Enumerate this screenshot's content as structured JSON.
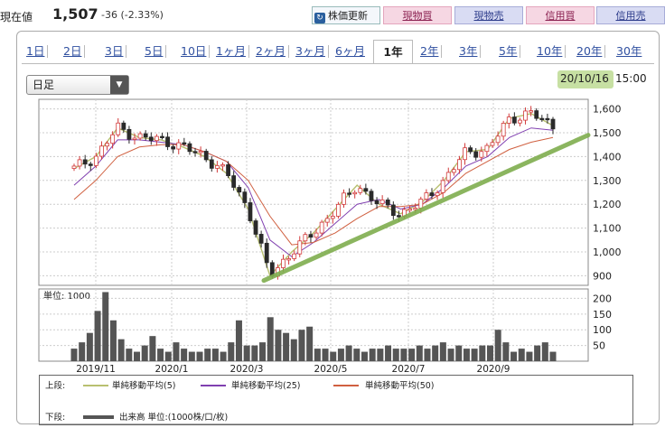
{
  "header": {
    "price_label": "現在値",
    "price_value": "1,507",
    "price_change": "-36 (-2.33%)",
    "refresh_label": "株価更新",
    "trade_buttons": [
      "現物買",
      "現物売",
      "信用買",
      "信用売"
    ]
  },
  "tabs": [
    "1日",
    "2日",
    "3日",
    "5日",
    "10日",
    "1ヶ月",
    "2ヶ月",
    "3ヶ月",
    "6ヶ月",
    "1年",
    "2年",
    "3年",
    "5年",
    "10年",
    "20年",
    "30年"
  ],
  "active_tab": "1年",
  "interval_select": {
    "value": "日足"
  },
  "as_of": {
    "date": "20/10/16",
    "time": "15:00"
  },
  "colors": {
    "up": "#d23a3a",
    "down": "#2a2a2a",
    "ma5": "#b8c070",
    "ma25": "#8040b0",
    "ma50": "#d06040",
    "trend": "#7fae4e",
    "volume": "#555555"
  },
  "chart_data": [
    {
      "type": "line",
      "title": "",
      "x_ticks": [
        "2019/11",
        "2020/1",
        "2020/3",
        "2020/5",
        "2020/7",
        "2020/9"
      ],
      "y_ticks": [
        "1,600",
        "1,500",
        "1,400",
        "1,300",
        "1,200",
        "1,100",
        "1,000",
        "900"
      ],
      "ylim": [
        860,
        1640
      ],
      "series": [
        {
          "name": "単純移動平均(5)",
          "values": [
            1350,
            1400,
            1520,
            1480,
            1470,
            1440,
            1400,
            1330,
            1180,
            900,
            1000,
            1080,
            1180,
            1280,
            1200,
            1160,
            1210,
            1300,
            1420,
            1430,
            1560,
            1580,
            1530
          ]
        },
        {
          "name": "単純移動平均(25)",
          "values": [
            1280,
            1360,
            1470,
            1470,
            1460,
            1450,
            1420,
            1380,
            1270,
            1050,
            980,
            1040,
            1120,
            1200,
            1220,
            1180,
            1200,
            1270,
            1360,
            1400,
            1480,
            1520,
            1510
          ]
        },
        {
          "name": "単純移動平均(50)",
          "values": [
            1220,
            1300,
            1400,
            1440,
            1450,
            1450,
            1420,
            1380,
            1300,
            1150,
            1030,
            1040,
            1080,
            1140,
            1190,
            1190,
            1200,
            1250,
            1330,
            1380,
            1430,
            1460,
            1480
          ]
        }
      ],
      "trendline": {
        "from": [
          "2020/3",
          880
        ],
        "to": [
          "2020/10",
          1490
        ]
      }
    },
    {
      "type": "bar",
      "title": "単位: 1000",
      "y_ticks": [
        "200",
        "150",
        "100",
        "50"
      ],
      "ylim": [
        0,
        230
      ],
      "values": [
        40,
        60,
        90,
        160,
        220,
        130,
        70,
        40,
        30,
        50,
        80,
        40,
        30,
        60,
        40,
        30,
        30,
        40,
        40,
        30,
        60,
        130,
        50,
        50,
        60,
        140,
        100,
        90,
        70,
        100,
        110,
        40,
        40,
        30,
        40,
        50,
        40,
        30,
        40,
        40,
        50,
        40,
        40,
        40,
        50,
        40,
        50,
        60,
        40,
        50,
        40,
        40,
        50,
        50,
        100,
        60,
        30,
        40,
        30,
        50,
        60,
        30
      ]
    }
  ],
  "legend": {
    "top_label": "上段:",
    "ma5": "単純移動平均(5)",
    "ma25": "単純移動平均(25)",
    "ma50": "単純移動平均(50)",
    "bottom_label": "下段:",
    "volume": "出来高 単位:(1000株/口/枚)"
  }
}
